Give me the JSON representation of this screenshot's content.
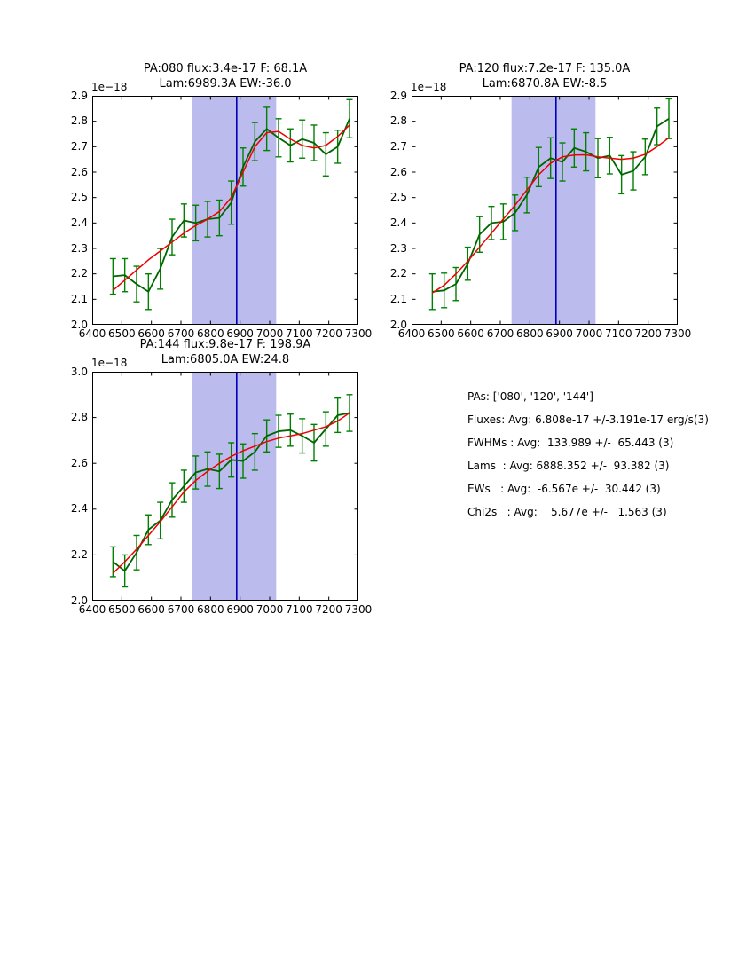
{
  "colors": {
    "data_line": "#006400",
    "error_bar": "#008000",
    "fit_line": "#ee0000",
    "marker_line": "#0000b8",
    "band_fill": "#bbbbee",
    "axis": "#000000",
    "background": "#ffffff"
  },
  "stats_panel": {
    "lines": [
      "PAs: ['080', '120', '144']",
      "Fluxes: Avg: 6.808e-17 +/-3.191e-17 erg/s(3)",
      "FWHMs : Avg:  133.989 +/-  65.443 (3)",
      "Lams  : Avg: 6888.352 +/-  93.382 (3)",
      "EWs   : Avg:  -6.567e +/-  30.442 (3)",
      "Chi2s   : Avg:    5.677e +/-   1.563 (3)"
    ]
  },
  "chart_data": [
    {
      "type": "line",
      "title_line1": "PA:080 flux:3.4e-17 F: 68.1A",
      "title_line2": "Lam:6989.3A EW:-36.0",
      "offset_label": "1e−18",
      "xlim": [
        6400,
        7300
      ],
      "ylim": [
        2.0,
        2.9
      ],
      "xticks": [
        "6400",
        "6500",
        "6600",
        "6700",
        "6800",
        "6900",
        "7000",
        "7100",
        "7200",
        "7300"
      ],
      "yticks": [
        "2.0",
        "2.1",
        "2.2",
        "2.3",
        "2.4",
        "2.5",
        "2.6",
        "2.7",
        "2.8",
        "2.9"
      ],
      "band": [
        6738,
        7022
      ],
      "vline": 6888.4,
      "x": [
        6470,
        6510,
        6550,
        6590,
        6630,
        6670,
        6710,
        6750,
        6790,
        6830,
        6870,
        6910,
        6950,
        6990,
        7030,
        7070,
        7110,
        7150,
        7190,
        7230,
        7270
      ],
      "series": [
        {
          "name": "spectrum",
          "values": [
            2.19,
            2.195,
            2.16,
            2.13,
            2.22,
            2.345,
            2.41,
            2.4,
            2.415,
            2.42,
            2.48,
            2.62,
            2.72,
            2.77,
            2.735,
            2.705,
            2.73,
            2.715,
            2.67,
            2.7,
            2.81
          ],
          "errors": [
            0.07,
            0.065,
            0.07,
            0.07,
            0.08,
            0.07,
            0.065,
            0.07,
            0.07,
            0.07,
            0.085,
            0.075,
            0.075,
            0.085,
            0.075,
            0.065,
            0.075,
            0.07,
            0.085,
            0.065,
            0.075
          ]
        },
        {
          "name": "fit",
          "values": [
            2.135,
            2.175,
            2.215,
            2.255,
            2.29,
            2.325,
            2.36,
            2.39,
            2.415,
            2.445,
            2.5,
            2.6,
            2.7,
            2.755,
            2.76,
            2.73,
            2.705,
            2.695,
            2.705,
            2.74,
            2.785
          ]
        }
      ]
    },
    {
      "type": "line",
      "title_line1": "PA:120 flux:7.2e-17 F: 135.0A",
      "title_line2": "Lam:6870.8A EW:-8.5",
      "offset_label": "1e−18",
      "xlim": [
        6400,
        7300
      ],
      "ylim": [
        2.0,
        2.9
      ],
      "xticks": [
        "6400",
        "6500",
        "6600",
        "6700",
        "6800",
        "6900",
        "7000",
        "7100",
        "7200",
        "7300"
      ],
      "yticks": [
        "2.0",
        "2.1",
        "2.2",
        "2.3",
        "2.4",
        "2.5",
        "2.6",
        "2.7",
        "2.8",
        "2.9"
      ],
      "band": [
        6738,
        7022
      ],
      "vline": 6888.4,
      "x": [
        6470,
        6510,
        6550,
        6590,
        6630,
        6670,
        6710,
        6750,
        6790,
        6830,
        6870,
        6910,
        6950,
        6990,
        7030,
        7070,
        7110,
        7150,
        7190,
        7230,
        7270
      ],
      "series": [
        {
          "name": "spectrum",
          "values": [
            2.13,
            2.135,
            2.16,
            2.24,
            2.355,
            2.4,
            2.405,
            2.44,
            2.51,
            2.62,
            2.655,
            2.64,
            2.695,
            2.68,
            2.655,
            2.665,
            2.59,
            2.605,
            2.66,
            2.78,
            2.81
          ],
          "errors": [
            0.07,
            0.068,
            0.065,
            0.065,
            0.07,
            0.065,
            0.07,
            0.07,
            0.07,
            0.077,
            0.08,
            0.075,
            0.075,
            0.075,
            0.077,
            0.072,
            0.075,
            0.075,
            0.07,
            0.072,
            0.078
          ]
        },
        {
          "name": "fit",
          "values": [
            2.125,
            2.155,
            2.2,
            2.25,
            2.305,
            2.36,
            2.415,
            2.47,
            2.53,
            2.59,
            2.635,
            2.66,
            2.667,
            2.668,
            2.66,
            2.655,
            2.65,
            2.655,
            2.67,
            2.7,
            2.735
          ]
        }
      ]
    },
    {
      "type": "line",
      "title_line1": "PA:144 flux:9.8e-17 F: 198.9A",
      "title_line2": "Lam:6805.0A EW:24.8",
      "offset_label": "1e−18",
      "xlim": [
        6400,
        7300
      ],
      "ylim": [
        2.0,
        3.0
      ],
      "xticks": [
        "6400",
        "6500",
        "6600",
        "6700",
        "6800",
        "6900",
        "7000",
        "7100",
        "7200",
        "7300"
      ],
      "yticks": [
        "2.0",
        "2.2",
        "2.4",
        "2.6",
        "2.8",
        "3.0"
      ],
      "band": [
        6738,
        7022
      ],
      "vline": 6888.4,
      "x": [
        6470,
        6510,
        6550,
        6590,
        6630,
        6670,
        6710,
        6750,
        6790,
        6830,
        6870,
        6910,
        6950,
        6990,
        7030,
        7070,
        7110,
        7150,
        7190,
        7230,
        7270
      ],
      "series": [
        {
          "name": "spectrum",
          "values": [
            2.17,
            2.13,
            2.21,
            2.31,
            2.35,
            2.44,
            2.5,
            2.56,
            2.575,
            2.565,
            2.615,
            2.61,
            2.65,
            2.72,
            2.74,
            2.745,
            2.72,
            2.69,
            2.75,
            2.81,
            2.82
          ],
          "errors": [
            0.065,
            0.07,
            0.075,
            0.065,
            0.08,
            0.075,
            0.07,
            0.072,
            0.075,
            0.075,
            0.075,
            0.075,
            0.08,
            0.07,
            0.07,
            0.07,
            0.075,
            0.08,
            0.075,
            0.075,
            0.08
          ]
        },
        {
          "name": "fit",
          "values": [
            2.12,
            2.17,
            2.225,
            2.285,
            2.345,
            2.41,
            2.475,
            2.525,
            2.565,
            2.6,
            2.63,
            2.655,
            2.675,
            2.695,
            2.71,
            2.72,
            2.73,
            2.745,
            2.76,
            2.785,
            2.82
          ]
        }
      ]
    }
  ]
}
